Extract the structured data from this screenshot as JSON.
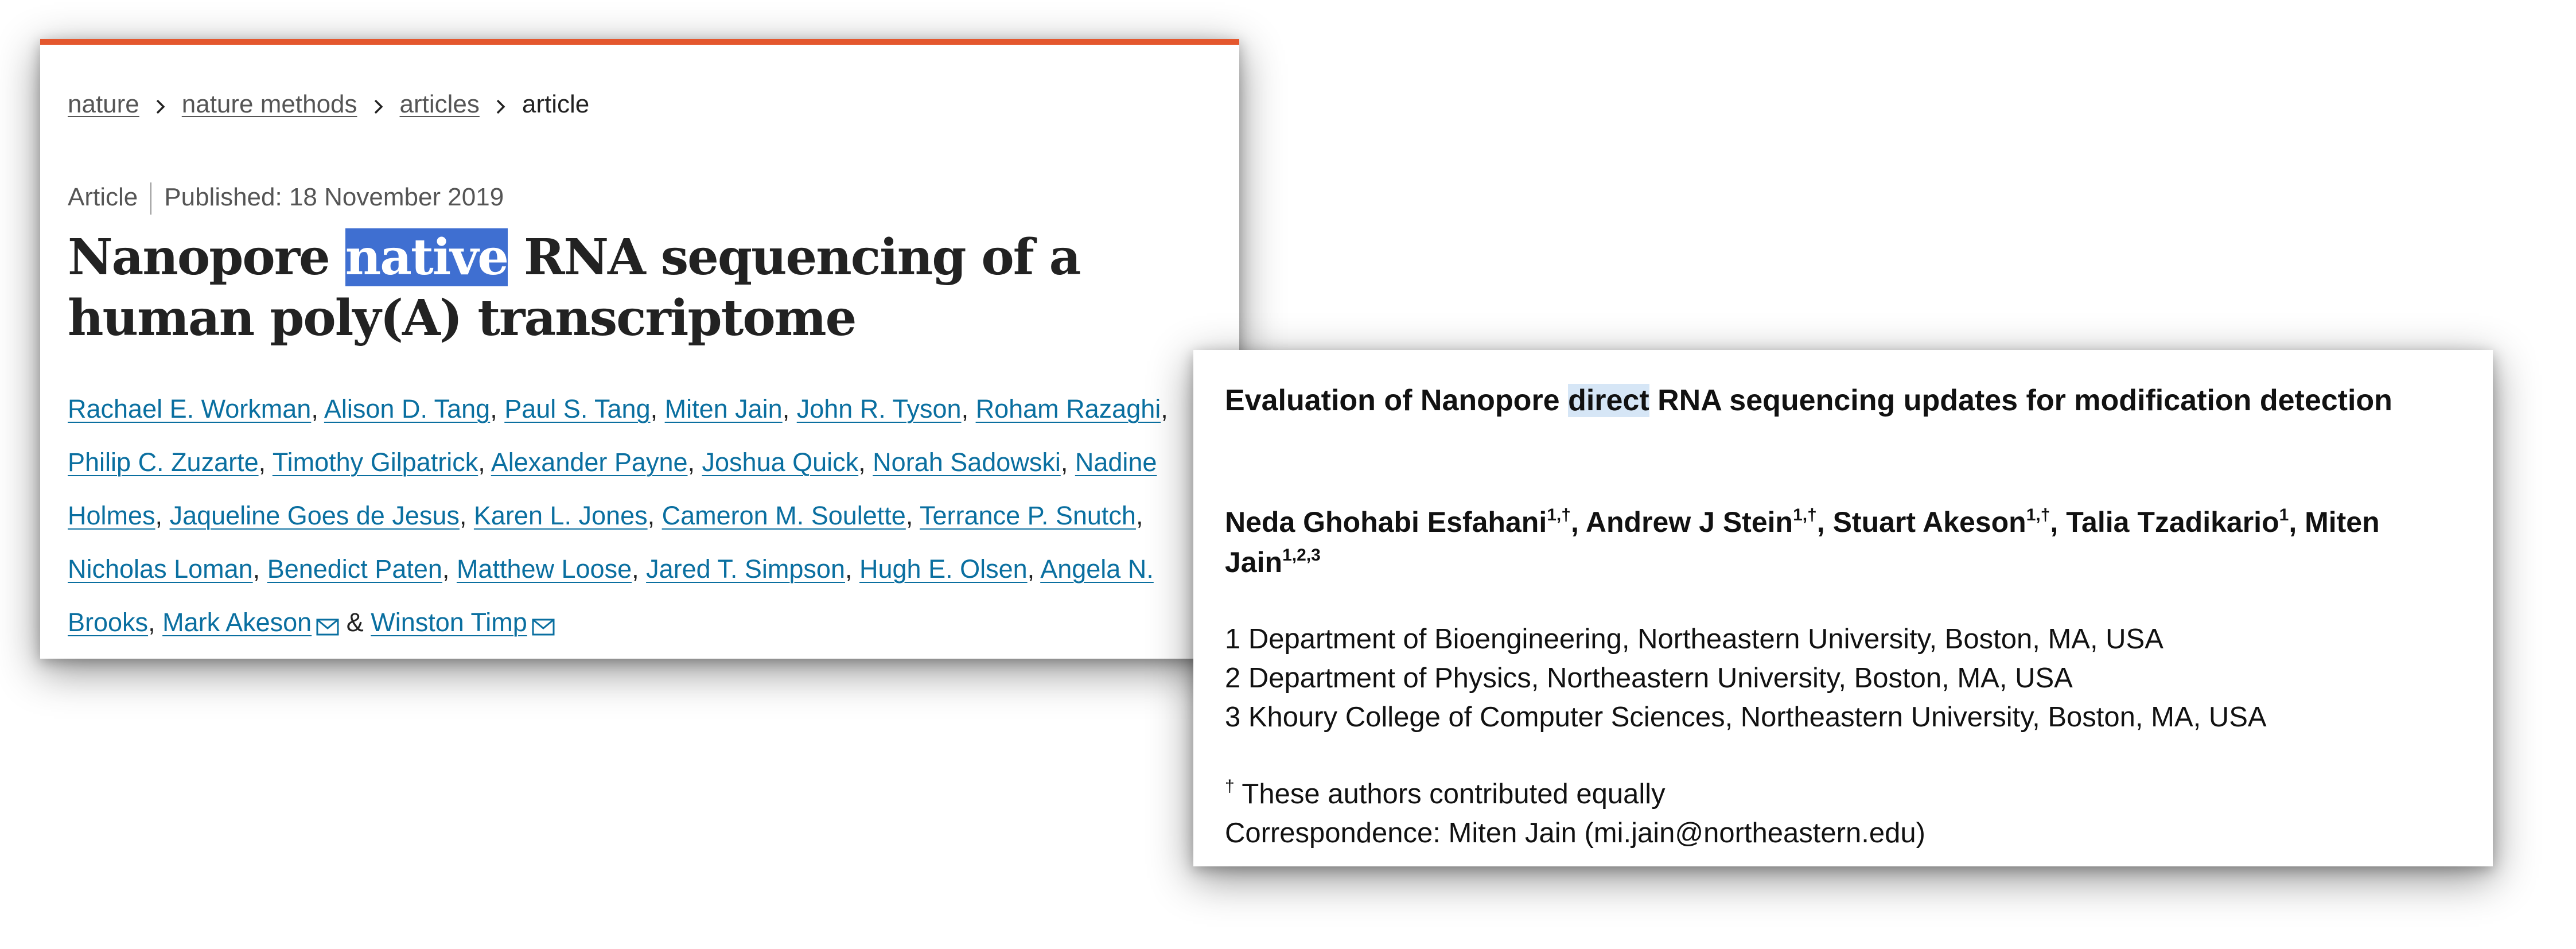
{
  "nature_article": {
    "accent_color": "#e4572e",
    "breadcrumb": [
      "nature",
      "nature methods",
      "articles",
      "article"
    ],
    "article_type": "Article",
    "published": "Published: 18 November 2019",
    "title_before": "Nanopore ",
    "title_highlight": "native",
    "title_after": " RNA sequencing of a human poly(A) transcriptome",
    "authors": [
      "Rachael E. Workman",
      "Alison D. Tang",
      "Paul S. Tang",
      "Miten Jain",
      "John R. Tyson",
      "Roham Razaghi",
      "Philip C. Zuzarte",
      "Timothy Gilpatrick",
      "Alexander Payne",
      "Joshua Quick",
      "Norah Sadowski",
      "Nadine Holmes",
      "Jaqueline Goes de Jesus",
      "Karen L. Jones",
      "Cameron M. Soulette",
      "Terrance P. Snutch",
      "Nicholas Loman",
      "Benedict Paten",
      "Matthew Loose",
      "Jared T. Simpson",
      "Hugh E. Olsen",
      "Angela N. Brooks",
      "Mark Akeson",
      "Winston Timp"
    ],
    "author_separator": ", ",
    "author_conjunction": " & ",
    "corresponding_icon": "mail-icon"
  },
  "preprint": {
    "title_before": "Evaluation of Nanopore ",
    "title_highlight": "direct",
    "title_after": " RNA sequencing updates for modification detection",
    "authors": [
      {
        "name": "Neda Ghohabi Esfahani",
        "sup": "1,†"
      },
      {
        "name": "Andrew J Stein",
        "sup": "1,†"
      },
      {
        "name": "Stuart Akeson",
        "sup": "1,†"
      },
      {
        "name": "Talia Tzadikario",
        "sup": "1"
      },
      {
        "name": "Miten Jain",
        "sup": "1,2,3"
      }
    ],
    "affiliations": [
      "1 Department of Bioengineering, Northeastern University, Boston, MA, USA",
      "2 Department of Physics, Northeastern University, Boston, MA, USA",
      "3 Khoury College of Computer Sciences, Northeastern University, Boston, MA, USA"
    ],
    "dagger": "†",
    "equal_contribution": " These authors contributed equally",
    "correspondence": "Correspondence: Miten Jain (mi.jain@northeastern.edu)"
  }
}
